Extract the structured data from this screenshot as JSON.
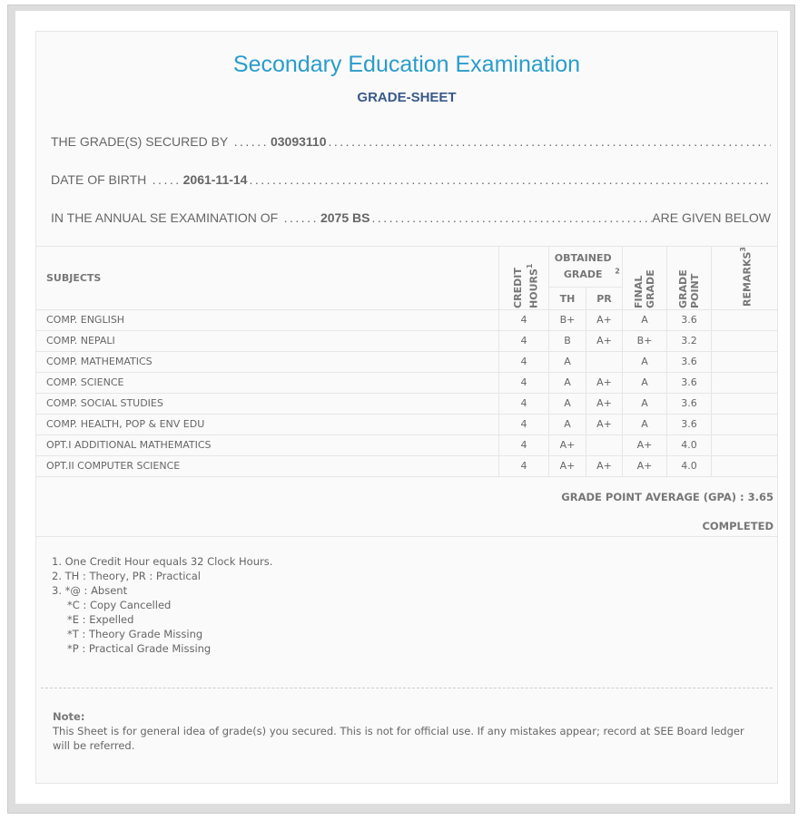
{
  "title": "Secondary Education Examination",
  "subtitle": "GRADE-SHEET",
  "lines": {
    "secured_label": "THE GRADE(S) SECURED BY",
    "symbol_no": "03093110",
    "dob_label": "DATE OF BIRTH",
    "dob": "2061-11-14",
    "exam_label": "IN THE ANNUAL SE EXAMINATION OF",
    "exam_year": "2075 BS",
    "exam_suffix": "ARE GIVEN BELOW"
  },
  "table": {
    "headers": {
      "subjects": "SUBJECTS",
      "credit": "CREDIT HOURS",
      "credit_sup": "1",
      "obtained": "OBTAINED GRADE",
      "obtained_sup": "2",
      "th": "TH",
      "pr": "PR",
      "final": "FINAL GRADE",
      "gp": "GRADE POINT",
      "remarks": "REMARKS",
      "remarks_sup": "3"
    },
    "rows": [
      {
        "subject": "COMP. ENGLISH",
        "credit": "4",
        "th": "B+",
        "pr": "A+",
        "final": "A",
        "gp": "3.6",
        "remarks": ""
      },
      {
        "subject": "COMP. NEPALI",
        "credit": "4",
        "th": "B",
        "pr": "A+",
        "final": "B+",
        "gp": "3.2",
        "remarks": ""
      },
      {
        "subject": "COMP. MATHEMATICS",
        "credit": "4",
        "th": "A",
        "pr": "",
        "final": "A",
        "gp": "3.6",
        "remarks": ""
      },
      {
        "subject": "COMP. SCIENCE",
        "credit": "4",
        "th": "A",
        "pr": "A+",
        "final": "A",
        "gp": "3.6",
        "remarks": ""
      },
      {
        "subject": "COMP. SOCIAL STUDIES",
        "credit": "4",
        "th": "A",
        "pr": "A+",
        "final": "A",
        "gp": "3.6",
        "remarks": ""
      },
      {
        "subject": "COMP. HEALTH, POP & ENV EDU",
        "credit": "4",
        "th": "A",
        "pr": "A+",
        "final": "A",
        "gp": "3.6",
        "remarks": ""
      },
      {
        "subject": "OPT.I ADDITIONAL MATHEMATICS",
        "credit": "4",
        "th": "A+",
        "pr": "",
        "final": "A+",
        "gp": "4.0",
        "remarks": ""
      },
      {
        "subject": "OPT.II COMPUTER SCIENCE",
        "credit": "4",
        "th": "A+",
        "pr": "A+",
        "final": "A+",
        "gp": "4.0",
        "remarks": ""
      }
    ]
  },
  "gpa": "GRADE POINT AVERAGE (GPA) : 3.65",
  "status": "COMPLETED",
  "footnotes": [
    "1. One Credit Hour equals 32 Clock Hours.",
    "2. TH : Theory, PR : Practical",
    "3. *@ : Absent"
  ],
  "remark_codes": [
    "*C : Copy Cancelled",
    "*E : Expelled",
    "*T : Theory Grade Missing",
    "*P : Practical Grade Missing"
  ],
  "note": {
    "label": "Note:",
    "text": "This Sheet is for general idea of grade(s) you secured. This is not for official use. If any mistakes appear; record at SEE Board ledger will be referred."
  }
}
